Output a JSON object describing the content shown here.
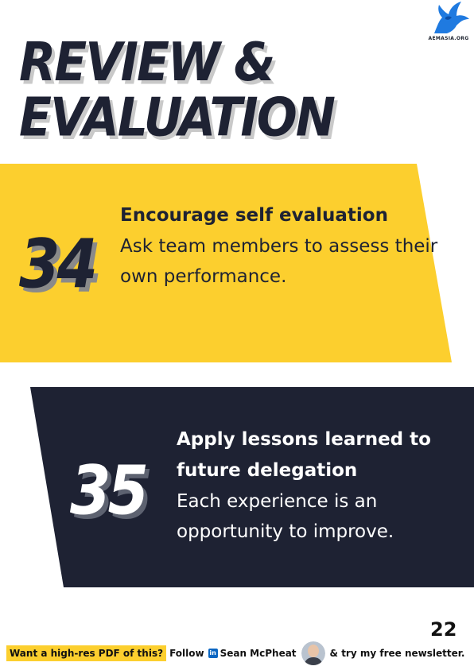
{
  "logo": {
    "text": "AEMASIA.ORG",
    "icon": "eagle-icon",
    "color": "#1f7ae0"
  },
  "title": {
    "line1": "REVIEW &",
    "line2": "EVALUATION"
  },
  "tips": [
    {
      "number": "34",
      "heading": "Encourage self evaluation",
      "body": "Ask team members to assess their own performance."
    },
    {
      "number": "35",
      "heading": "Apply lessons learned to future delegation",
      "body": "Each experience is an opportunity to improve."
    }
  ],
  "colors": {
    "yellow": "#fccf2e",
    "navy": "#1e2233"
  },
  "page_number": "22",
  "footer": {
    "pdf_prompt": "Want a high-res PDF of this?",
    "follow": "Follow",
    "linkedin_icon": "in",
    "author": "Sean McPheat",
    "newsletter": "& try my free newsletter."
  }
}
